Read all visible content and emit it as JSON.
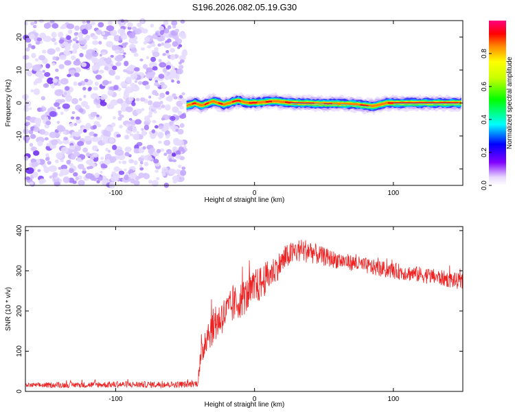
{
  "figure": {
    "title": "S196.2026.082.05.19.G30"
  },
  "chart_data": [
    {
      "type": "heatmap",
      "xlabel": "Height of straight line (km)",
      "ylabel": "Frequency (Hz)",
      "xlim": [
        -165,
        150
      ],
      "ylim": [
        -25,
        25
      ],
      "xticks": [
        -100,
        0,
        100
      ],
      "yticks": [
        -20,
        -10,
        0,
        10,
        20
      ],
      "noise_region_x": [
        -165,
        -50
      ],
      "signal_start_x": -50,
      "ridge": [
        {
          "x": -50,
          "y": -1.0
        },
        {
          "x": -43,
          "y": 0.0
        },
        {
          "x": -38,
          "y": -0.8
        },
        {
          "x": -30,
          "y": 0.5
        },
        {
          "x": -22,
          "y": -0.5
        },
        {
          "x": -12,
          "y": 0.8
        },
        {
          "x": -5,
          "y": 0.0
        },
        {
          "x": 5,
          "y": 0.2
        },
        {
          "x": 15,
          "y": 0.6
        },
        {
          "x": 28,
          "y": 0.0
        },
        {
          "x": 50,
          "y": -0.2
        },
        {
          "x": 70,
          "y": -0.3
        },
        {
          "x": 85,
          "y": -1.0
        },
        {
          "x": 95,
          "y": 0.0
        },
        {
          "x": 150,
          "y": 0.0
        }
      ],
      "colorbar": {
        "label": "Normalized spectral amplitude",
        "range": [
          0,
          1
        ],
        "ticks": [
          "0.0",
          "0.2",
          "0.4",
          "0.6",
          "0.8"
        ]
      }
    },
    {
      "type": "line",
      "xlabel": "Height of straight line (km)",
      "ylabel": "SNR (10 * v/v)",
      "xlim": [
        -165,
        150
      ],
      "ylim": [
        0,
        410
      ],
      "xticks": [
        -100,
        0,
        100
      ],
      "yticks": [
        0,
        100,
        200,
        300,
        400
      ],
      "series": [
        {
          "name": "SNR",
          "color": "#ee2222",
          "x": [
            -165,
            -100,
            -50,
            -41,
            -40,
            -35,
            -25,
            -15,
            -5,
            5,
            15,
            25,
            32,
            40,
            45,
            55,
            70,
            90,
            110,
            130,
            145,
            150
          ],
          "values": [
            15,
            17,
            17,
            20,
            55,
            140,
            180,
            215,
            240,
            270,
            305,
            340,
            350,
            350,
            340,
            330,
            320,
            305,
            295,
            285,
            275,
            270
          ],
          "noise": [
            6,
            8,
            8,
            8,
            25,
            45,
            45,
            45,
            45,
            45,
            35,
            30,
            30,
            30,
            25,
            22,
            20,
            20,
            20,
            20,
            20,
            20
          ]
        }
      ]
    }
  ]
}
